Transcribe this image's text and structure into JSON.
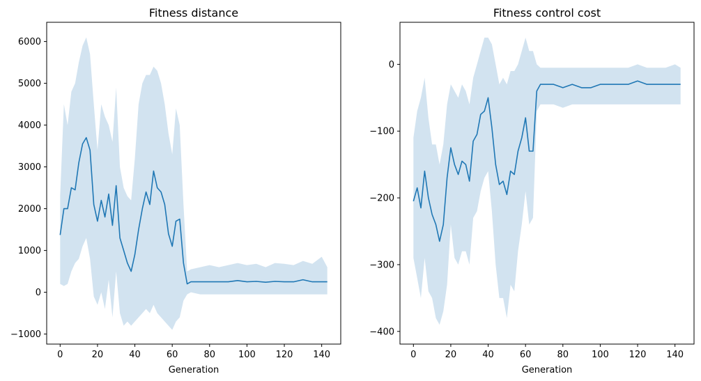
{
  "chart_data": [
    {
      "type": "line",
      "title": "Fitness distance",
      "xlabel": "Generation",
      "ylabel": "",
      "xlim": [
        -7.2,
        150.2
      ],
      "ylim": [
        -1240,
        6460
      ],
      "xticks": [
        0,
        20,
        40,
        60,
        80,
        100,
        120,
        140
      ],
      "yticks": [
        -1000,
        0,
        1000,
        2000,
        3000,
        4000,
        5000,
        6000
      ],
      "xtick_labels": [
        "0",
        "20",
        "40",
        "60",
        "80",
        "100",
        "120",
        "140"
      ],
      "ytick_labels": [
        "−1000",
        "0",
        "1000",
        "2000",
        "3000",
        "4000",
        "5000",
        "6000"
      ],
      "grid": false,
      "series": [
        {
          "color": "#1f77b4",
          "band_color": "#d2e3f0",
          "x": [
            0,
            2,
            4,
            6,
            8,
            10,
            12,
            14,
            16,
            18,
            20,
            22,
            24,
            26,
            28,
            30,
            32,
            34,
            36,
            38,
            40,
            42,
            44,
            46,
            48,
            50,
            52,
            54,
            56,
            58,
            60,
            62,
            64,
            66,
            68,
            70,
            75,
            80,
            85,
            90,
            95,
            100,
            105,
            110,
            115,
            120,
            125,
            130,
            135,
            140,
            143
          ],
          "mean": [
            1370,
            2000,
            2000,
            2500,
            2450,
            3100,
            3550,
            3700,
            3400,
            2100,
            1700,
            2200,
            1800,
            2350,
            1600,
            2550,
            1300,
            1000,
            700,
            500,
            900,
            1500,
            2000,
            2400,
            2100,
            2900,
            2500,
            2400,
            2100,
            1400,
            1100,
            1700,
            1750,
            700,
            200,
            250,
            250,
            250,
            250,
            250,
            280,
            250,
            260,
            240,
            260,
            250,
            250,
            300,
            250,
            250,
            250
          ],
          "upper": [
            2300,
            4500,
            4000,
            4800,
            5000,
            5500,
            5900,
            6100,
            5700,
            4500,
            3400,
            4500,
            4200,
            4000,
            3600,
            4900,
            3000,
            2500,
            2300,
            2200,
            3200,
            4500,
            5000,
            5200,
            5200,
            5400,
            5300,
            5000,
            4500,
            3800,
            3300,
            4400,
            4000,
            2100,
            500,
            550,
            600,
            650,
            600,
            650,
            700,
            650,
            680,
            600,
            700,
            680,
            650,
            750,
            680,
            850,
            600
          ],
          "lower": [
            200,
            150,
            200,
            500,
            700,
            800,
            1100,
            1300,
            800,
            -100,
            -300,
            0,
            -400,
            300,
            -600,
            500,
            -500,
            -800,
            -700,
            -800,
            -700,
            -600,
            -500,
            -400,
            -500,
            -300,
            -500,
            -600,
            -700,
            -800,
            -900,
            -700,
            -600,
            -200,
            -50,
            0,
            -50,
            -50,
            -50,
            -50,
            -50,
            -50,
            -50,
            -50,
            -50,
            -50,
            -50,
            -50,
            -50,
            -50,
            -50
          ]
        }
      ]
    },
    {
      "type": "line",
      "title": "Fitness control cost",
      "xlabel": "Generation",
      "ylabel": "",
      "xlim": [
        -7.2,
        150.2
      ],
      "ylim": [
        -419,
        63
      ],
      "xticks": [
        0,
        20,
        40,
        60,
        80,
        100,
        120,
        140
      ],
      "yticks": [
        -400,
        -300,
        -200,
        -100,
        0
      ],
      "xtick_labels": [
        "0",
        "20",
        "40",
        "60",
        "80",
        "100",
        "120",
        "140"
      ],
      "ytick_labels": [
        "−400",
        "−300",
        "−200",
        "−100",
        "0"
      ],
      "grid": false,
      "series": [
        {
          "color": "#1f77b4",
          "band_color": "#d2e3f0",
          "x": [
            0,
            2,
            4,
            6,
            8,
            10,
            12,
            14,
            16,
            18,
            20,
            22,
            24,
            26,
            28,
            30,
            32,
            34,
            36,
            38,
            40,
            42,
            44,
            46,
            48,
            50,
            52,
            54,
            56,
            58,
            60,
            62,
            64,
            66,
            68,
            70,
            75,
            80,
            85,
            90,
            95,
            100,
            105,
            110,
            115,
            120,
            125,
            130,
            135,
            140,
            143
          ],
          "mean": [
            -205,
            -185,
            -215,
            -160,
            -200,
            -225,
            -240,
            -265,
            -240,
            -170,
            -125,
            -150,
            -165,
            -145,
            -150,
            -175,
            -115,
            -105,
            -75,
            -70,
            -50,
            -95,
            -150,
            -180,
            -175,
            -195,
            -160,
            -165,
            -130,
            -110,
            -80,
            -130,
            -130,
            -40,
            -30,
            -30,
            -30,
            -35,
            -30,
            -35,
            -35,
            -30,
            -30,
            -30,
            -30,
            -25,
            -30,
            -30,
            -30,
            -30,
            -30
          ],
          "upper": [
            -110,
            -70,
            -50,
            -20,
            -80,
            -120,
            -120,
            -150,
            -120,
            -60,
            -30,
            -40,
            -50,
            -30,
            -40,
            -60,
            -20,
            0,
            20,
            40,
            40,
            30,
            0,
            -30,
            -20,
            -30,
            -10,
            -10,
            0,
            20,
            40,
            20,
            20,
            0,
            -5,
            -5,
            -5,
            -5,
            -5,
            -5,
            -5,
            -5,
            -5,
            -5,
            -5,
            0,
            -5,
            -5,
            -5,
            0,
            -5
          ],
          "lower": [
            -290,
            -320,
            -350,
            -290,
            -340,
            -350,
            -380,
            -390,
            -370,
            -330,
            -240,
            -290,
            -300,
            -280,
            -280,
            -300,
            -230,
            -220,
            -190,
            -170,
            -160,
            -220,
            -300,
            -350,
            -350,
            -380,
            -330,
            -340,
            -280,
            -240,
            -190,
            -240,
            -230,
            -70,
            -60,
            -60,
            -60,
            -65,
            -60,
            -60,
            -60,
            -60,
            -60,
            -60,
            -60,
            -60,
            -60,
            -60,
            -60,
            -60,
            -60
          ]
        }
      ]
    }
  ]
}
